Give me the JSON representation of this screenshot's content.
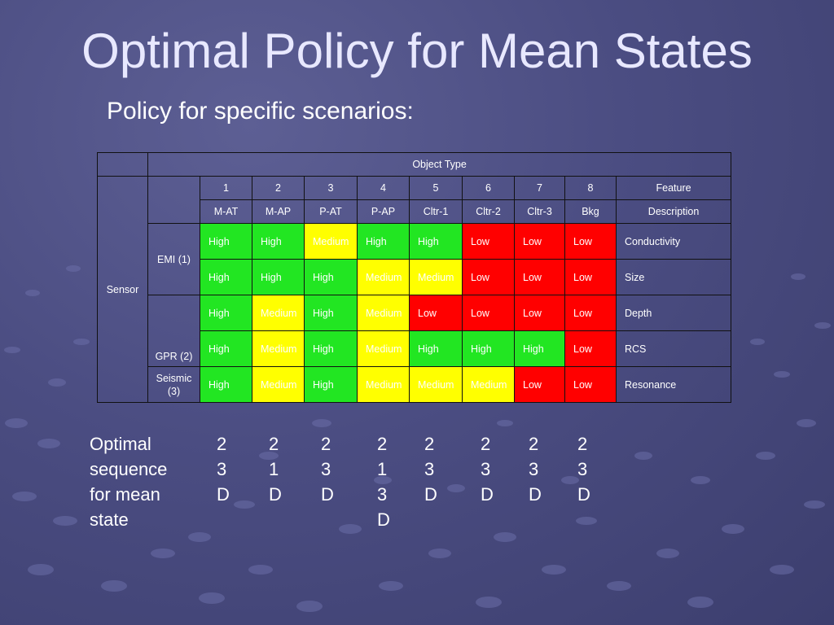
{
  "slide": {
    "title": "Optimal Policy for Mean States",
    "subtitle": "Policy for specific scenarios:"
  },
  "table": {
    "object_type_header": "Object Type",
    "numbers": [
      "1",
      "2",
      "3",
      "4",
      "5",
      "6",
      "7",
      "8"
    ],
    "names": [
      "M-AT",
      "M-AP",
      "P-AT",
      "P-AP",
      "Cltr-1",
      "Cltr-2",
      "Cltr-3",
      "Bkg"
    ],
    "feature_header_1": "Feature",
    "feature_header_2": "Description",
    "row_group_label": "Sensor",
    "sensors": {
      "emi": "EMI (1)",
      "gpr": "GPR (2)",
      "seismic": "Seismic (3)"
    },
    "rows": [
      {
        "feature": "Conductivity",
        "cells": [
          "High",
          "High",
          "Medium",
          "High",
          "High",
          "Low",
          "Low",
          "Low"
        ]
      },
      {
        "feature": "Size",
        "cells": [
          "High",
          "High",
          "High",
          "Medium",
          "Medium",
          "Low",
          "Low",
          "Low"
        ]
      },
      {
        "feature": "Depth",
        "cells": [
          "High",
          "Medium",
          "High",
          "Medium",
          "Low",
          "Low",
          "Low",
          "Low"
        ]
      },
      {
        "feature": "RCS",
        "cells": [
          "High",
          "Medium",
          "High",
          "Medium",
          "High",
          "High",
          "High",
          "Low"
        ]
      },
      {
        "feature": "Resonance",
        "cells": [
          "High",
          "Medium",
          "High",
          "Medium",
          "Medium",
          "Medium",
          "Low",
          "Low"
        ]
      }
    ],
    "colors": {
      "High": "#22e622",
      "Medium": "#ffff00",
      "Low": "#ff0000"
    }
  },
  "sequence": {
    "label": [
      "Optimal",
      "sequence",
      "for mean",
      "state"
    ],
    "columns": [
      [
        "2",
        "3",
        "D"
      ],
      [
        "2",
        "1",
        "D"
      ],
      [
        "2",
        "3",
        "D"
      ],
      [
        "2",
        "1",
        "3",
        "D"
      ],
      [
        "2",
        "3",
        "D"
      ],
      [
        "2",
        "3",
        "D"
      ],
      [
        "2",
        "3",
        "D"
      ],
      [
        "2",
        "3",
        "D"
      ]
    ]
  }
}
